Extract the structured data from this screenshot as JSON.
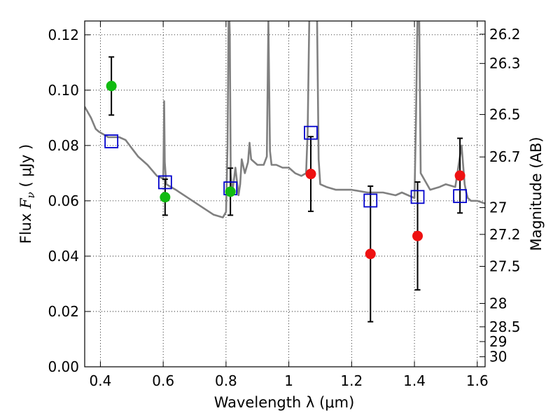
{
  "chart_data": {
    "type": "scatter",
    "xlabel": "Wavelength  λ (μm)",
    "ylabel_prefix": "Flux  ",
    "ylabel_var": "F",
    "ylabel_sub": "ν",
    "ylabel_unit": "  ( μJy )",
    "y2label": "Magnitude (AB)",
    "xlim": [
      0.35,
      1.625
    ],
    "ylim": [
      0.0,
      0.125
    ],
    "grid": true,
    "x_ticks": [
      {
        "v": 0.4,
        "label": "0.4"
      },
      {
        "v": 0.6,
        "label": "0.6"
      },
      {
        "v": 0.8,
        "label": "0.8"
      },
      {
        "v": 1.0,
        "label": "1"
      },
      {
        "v": 1.2,
        "label": "1.2"
      },
      {
        "v": 1.4,
        "label": "1.4"
      },
      {
        "v": 1.6,
        "label": "1.6"
      }
    ],
    "y_ticks": [
      {
        "v": 0.0,
        "label": "0.00"
      },
      {
        "v": 0.02,
        "label": "0.02"
      },
      {
        "v": 0.04,
        "label": "0.04"
      },
      {
        "v": 0.06,
        "label": "0.06"
      },
      {
        "v": 0.08,
        "label": "0.08"
      },
      {
        "v": 0.1,
        "label": "0.10"
      },
      {
        "v": 0.12,
        "label": "0.12"
      }
    ],
    "mag_ticks": [
      "26.2",
      "26.3",
      "26.5",
      "26.7",
      "27",
      "27.2",
      "27.5",
      "28",
      "28.5",
      "29",
      "30"
    ],
    "colors": {
      "model": "#808080",
      "green": "#11bb11",
      "red": "#ee1111",
      "box": "#0000cc",
      "errorbar": "#000000"
    },
    "series": [
      {
        "kind": "observed-green",
        "points": [
          {
            "x": 0.435,
            "y": 0.1015,
            "err": 0.0105
          },
          {
            "x": 0.606,
            "y": 0.0613,
            "err": 0.0065
          },
          {
            "x": 0.814,
            "y": 0.0633,
            "err": 0.0085
          }
        ]
      },
      {
        "kind": "observed-red",
        "points": [
          {
            "x": 1.07,
            "y": 0.0697,
            "err": 0.0135
          },
          {
            "x": 1.26,
            "y": 0.0408,
            "err": 0.0245
          },
          {
            "x": 1.41,
            "y": 0.0473,
            "err": 0.0195
          },
          {
            "x": 1.545,
            "y": 0.0691,
            "err": 0.0135
          }
        ]
      },
      {
        "kind": "model-boxes",
        "points": [
          {
            "x": 0.435,
            "y": 0.0815
          },
          {
            "x": 0.606,
            "y": 0.0667
          },
          {
            "x": 0.814,
            "y": 0.0645
          },
          {
            "x": 1.07,
            "y": 0.0846
          },
          {
            "x": 1.26,
            "y": 0.0601
          },
          {
            "x": 1.41,
            "y": 0.0614
          },
          {
            "x": 1.545,
            "y": 0.0617
          }
        ]
      },
      {
        "kind": "model-spectrum",
        "x": [
          0.35,
          0.37,
          0.385,
          0.395,
          0.41,
          0.425,
          0.44,
          0.46,
          0.48,
          0.5,
          0.52,
          0.55,
          0.58,
          0.6,
          0.601,
          0.603,
          0.605,
          0.61,
          0.64,
          0.68,
          0.72,
          0.76,
          0.79,
          0.8,
          0.805,
          0.808,
          0.81,
          0.812,
          0.815,
          0.82,
          0.83,
          0.84,
          0.845,
          0.85,
          0.86,
          0.87,
          0.875,
          0.88,
          0.9,
          0.92,
          0.93,
          0.935,
          0.94,
          0.945,
          0.96,
          0.98,
          1.0,
          1.02,
          1.04,
          1.055,
          1.06,
          1.065,
          1.07,
          1.08,
          1.09,
          1.095,
          1.1,
          1.12,
          1.15,
          1.2,
          1.25,
          1.3,
          1.34,
          1.36,
          1.38,
          1.4,
          1.405,
          1.41,
          1.415,
          1.42,
          1.45,
          1.48,
          1.5,
          1.53,
          1.55,
          1.56,
          1.565,
          1.57,
          1.58,
          1.6,
          1.625
        ],
        "y": [
          0.094,
          0.09,
          0.086,
          0.085,
          0.084,
          0.083,
          0.083,
          0.083,
          0.082,
          0.079,
          0.076,
          0.073,
          0.069,
          0.068,
          0.074,
          0.096,
          0.074,
          0.066,
          0.064,
          0.061,
          0.058,
          0.055,
          0.054,
          0.056,
          0.08,
          0.125,
          0.128,
          0.12,
          0.07,
          0.063,
          0.072,
          0.062,
          0.066,
          0.075,
          0.07,
          0.074,
          0.081,
          0.075,
          0.073,
          0.073,
          0.076,
          0.125,
          0.078,
          0.073,
          0.073,
          0.072,
          0.072,
          0.07,
          0.069,
          0.07,
          0.085,
          0.125,
          0.128,
          0.128,
          0.125,
          0.075,
          0.066,
          0.065,
          0.064,
          0.064,
          0.063,
          0.063,
          0.062,
          0.063,
          0.062,
          0.061,
          0.09,
          0.128,
          0.128,
          0.07,
          0.064,
          0.065,
          0.066,
          0.065,
          0.08,
          0.066,
          0.063,
          0.061,
          0.06,
          0.06,
          0.059
        ]
      }
    ]
  }
}
